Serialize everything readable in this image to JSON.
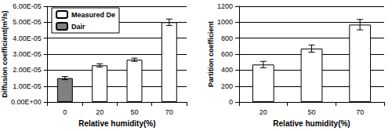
{
  "chart_data": [
    {
      "type": "bar",
      "x_label": "Relative humidity(%)",
      "y_label": "Diffusion coefficient(m²/s)",
      "categories": [
        "0",
        "20",
        "50",
        "70"
      ],
      "series": [
        {
          "name": "Measured De",
          "color": "#ffffff",
          "values": [
            null,
            2.3e-05,
            2.65e-05,
            5e-05
          ],
          "errors": [
            null,
            1e-06,
            1e-06,
            2e-06
          ]
        },
        {
          "name": "Dair",
          "color": "#808080",
          "values": [
            1.5e-05,
            null,
            null,
            null
          ],
          "errors": [
            1e-06,
            null,
            null,
            null
          ]
        }
      ],
      "ylim": [
        0,
        6e-05
      ],
      "yticks": [
        {
          "value": 0,
          "label": "0.00E+00"
        },
        {
          "value": 1e-05,
          "label": "1.00E-05"
        },
        {
          "value": 2e-05,
          "label": "2.00E-05"
        },
        {
          "value": 3e-05,
          "label": "3.00E-05"
        },
        {
          "value": 4e-05,
          "label": "4.00E-05"
        },
        {
          "value": 5e-05,
          "label": "5.00E-05"
        },
        {
          "value": 6e-05,
          "label": "6.00E-05"
        }
      ],
      "grid": true,
      "legend": "upper left"
    },
    {
      "type": "bar",
      "x_label": "Relative humidity(%)",
      "y_label": "Partition coefficient",
      "categories": [
        "20",
        "50",
        "70"
      ],
      "color": "#ffffff",
      "values": [
        470,
        670,
        970
      ],
      "errors": [
        40,
        45,
        65
      ],
      "ylim": [
        0,
        1200
      ],
      "yticks": [
        0,
        200,
        400,
        600,
        800,
        1000,
        1200
      ],
      "grid": true
    }
  ]
}
